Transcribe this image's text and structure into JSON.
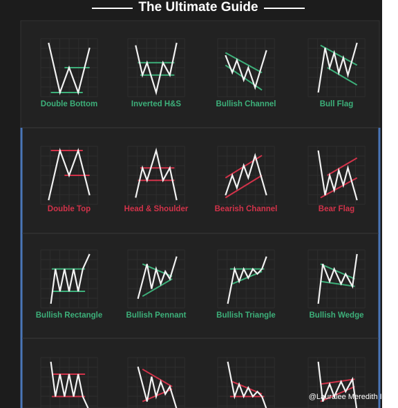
{
  "header": {
    "title": "The Ultimate Guide"
  },
  "patterns": [
    {
      "label": "Double Bottom",
      "color": "#3db07a"
    },
    {
      "label": "Inverted H&S",
      "color": "#3db07a"
    },
    {
      "label": "Bullish Channel",
      "color": "#3db07a"
    },
    {
      "label": "Bull Flag",
      "color": "#3db07a"
    },
    {
      "label": "Double Top",
      "color": "#d2334a"
    },
    {
      "label": "Head & Shoulder",
      "color": "#d2334a"
    },
    {
      "label": "Bearish Channel",
      "color": "#d2334a"
    },
    {
      "label": "Bear Flag",
      "color": "#d2334a"
    },
    {
      "label": "Bullish Rectangle",
      "color": "#3db07a"
    },
    {
      "label": "Bullish Pennant",
      "color": "#3db07a"
    },
    {
      "label": "Bullish Triangle",
      "color": "#3db07a"
    },
    {
      "label": "Bullish Wedge",
      "color": "#3db07a"
    }
  ],
  "watermark": "@Lauralee Meredith Iq..."
}
